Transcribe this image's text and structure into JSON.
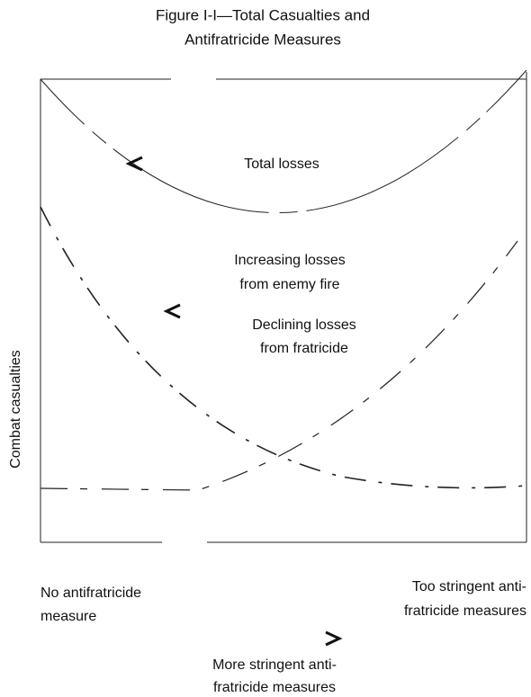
{
  "title": [
    "Figure I-I—Total Casualties and",
    "Antifratricide Measures"
  ],
  "y_axis_label": "Combat casualties",
  "curves": {
    "total": "Total losses",
    "enemy": [
      "Increasing losses",
      "from enemy fire"
    ],
    "fratricide": [
      "Declining losses",
      "from fratricide"
    ]
  },
  "x_axis": {
    "left": [
      "No antifratricide",
      "measure"
    ],
    "right": [
      "Too stringent anti-",
      "fratricide measures"
    ],
    "label": [
      "More stringent anti-",
      "fratricide measures"
    ]
  }
}
